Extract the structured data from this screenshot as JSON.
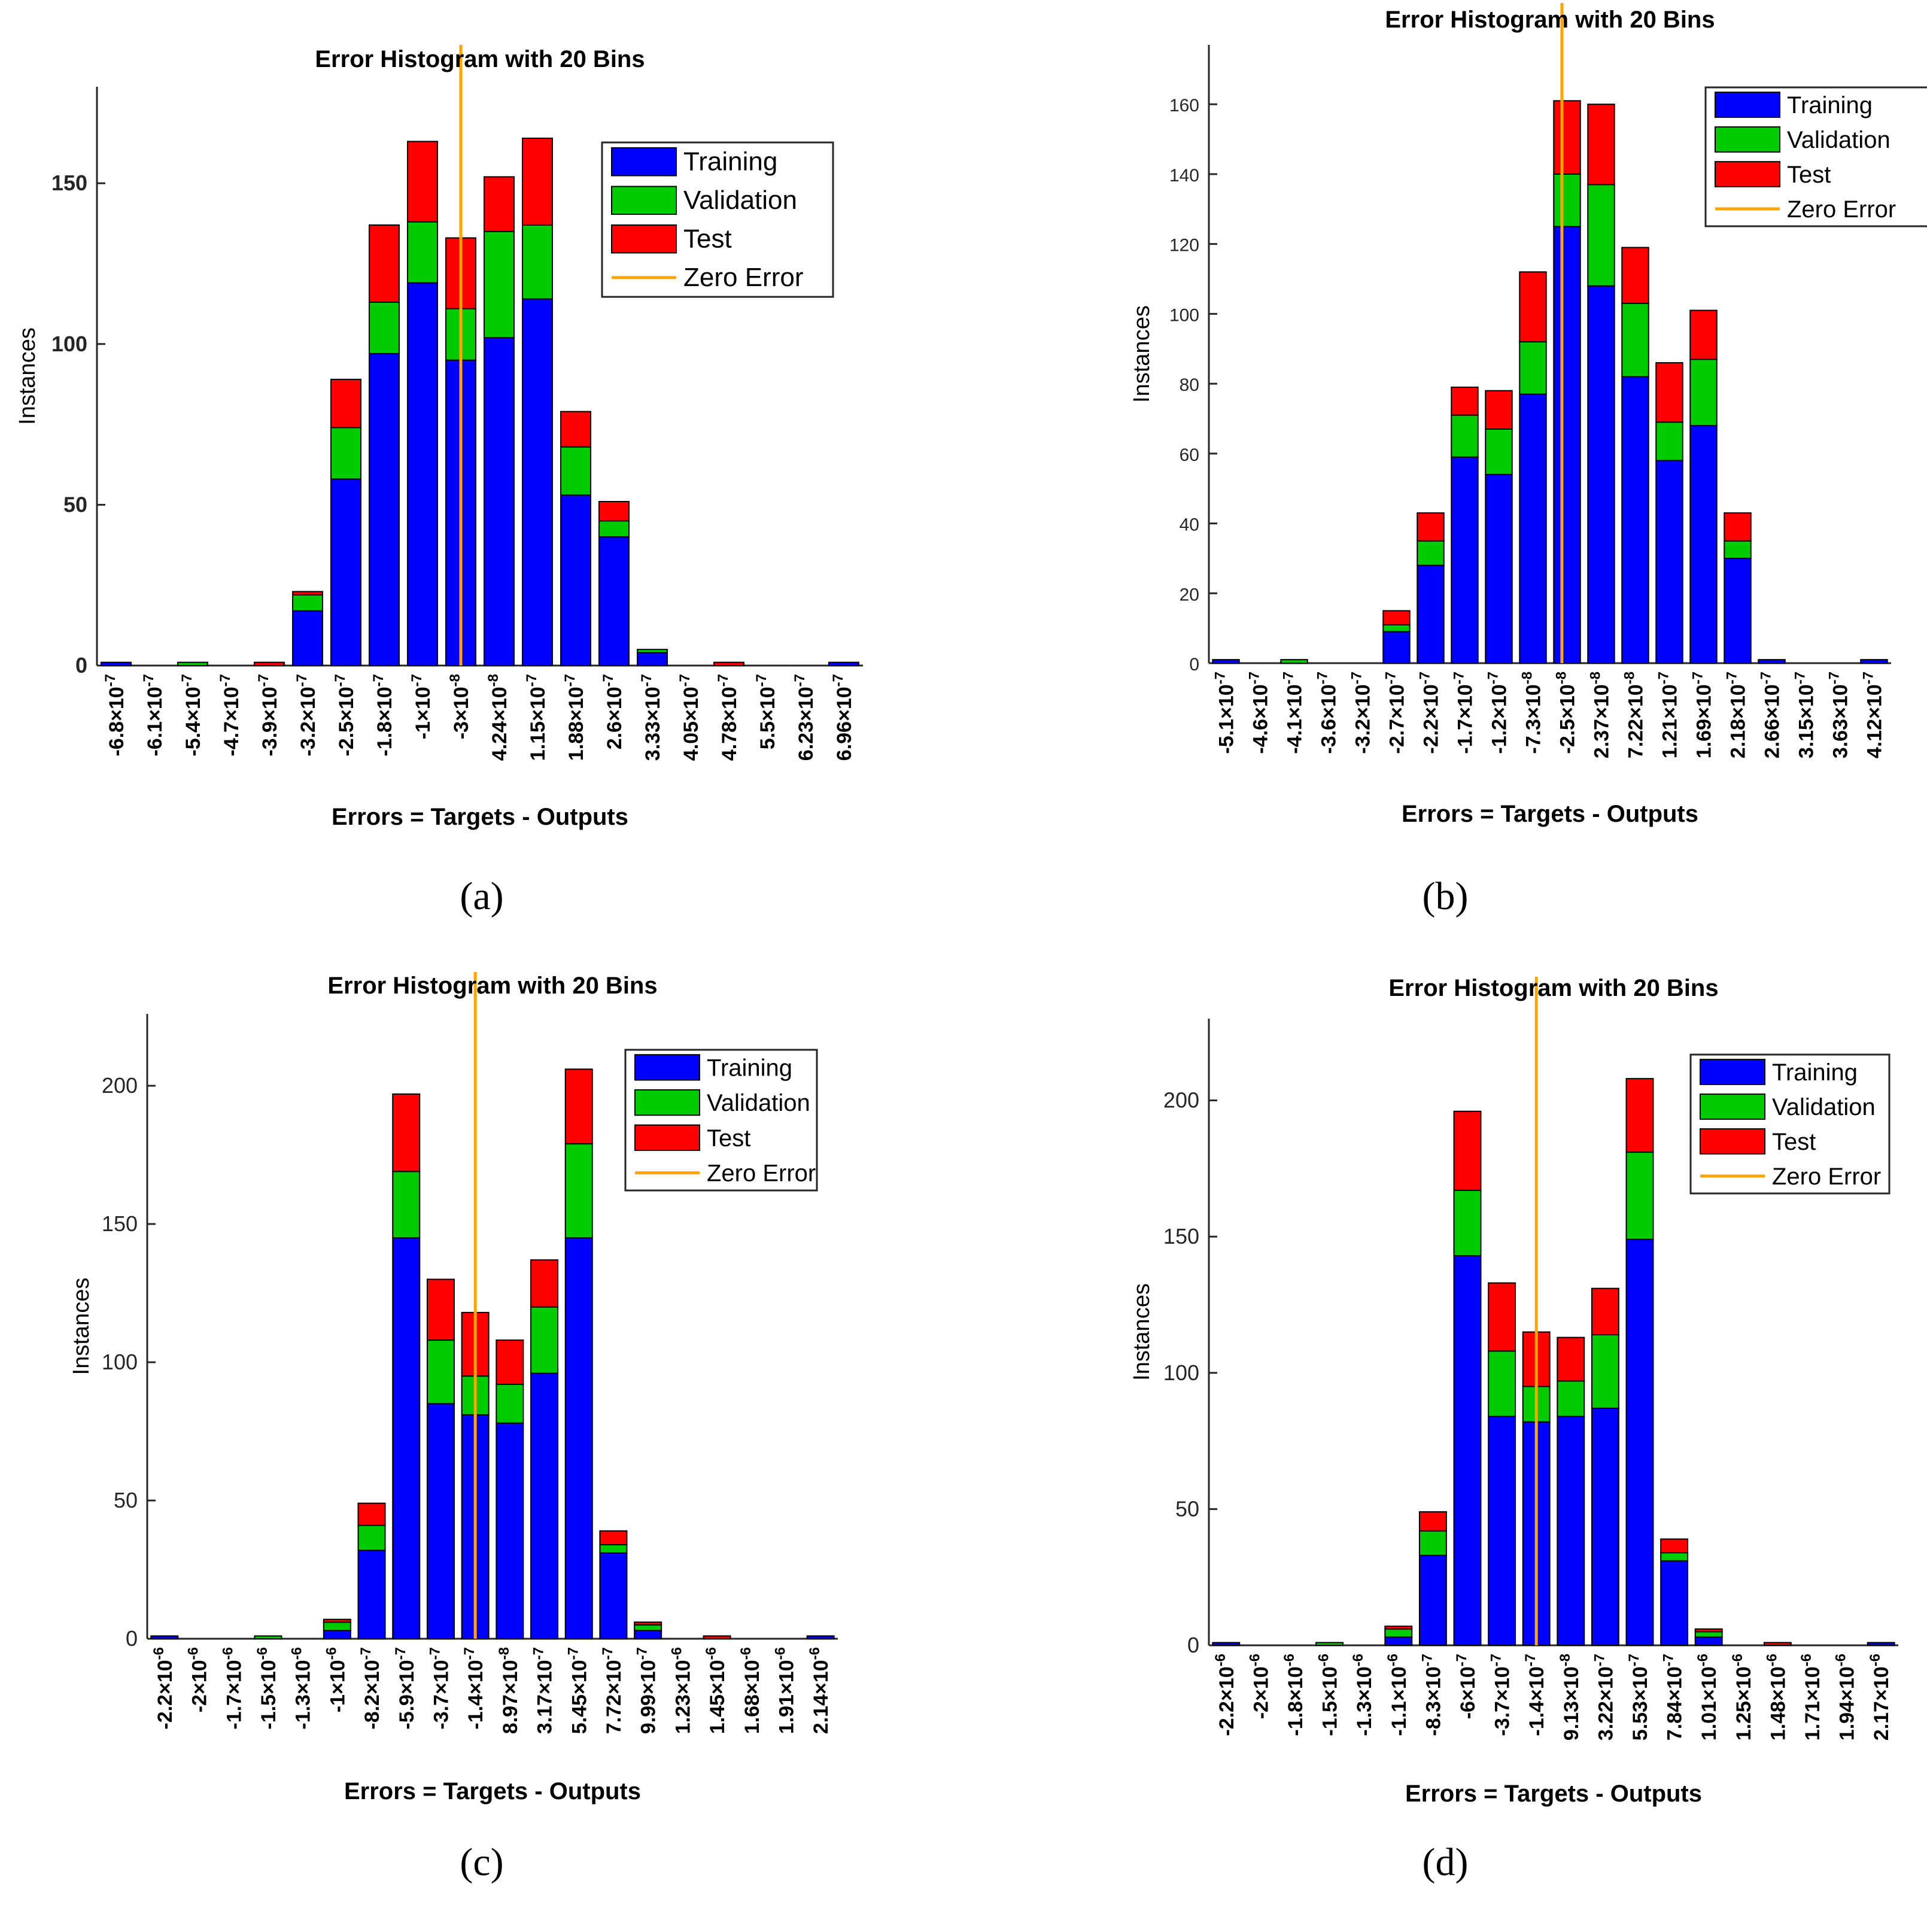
{
  "colors": {
    "training": "#0000ff",
    "validation": "#00cc00",
    "test": "#ff0000",
    "zero": "#ffa500"
  },
  "chart_data": [
    {
      "type": "bar",
      "stacked": true,
      "caption": "(a)",
      "title": "Error Histogram with 20 Bins",
      "xlabel": "Errors = Targets - Outputs",
      "ylabel": "Instances",
      "ylim": [
        0,
        180
      ],
      "yticks": [
        0,
        50,
        100,
        150
      ],
      "zero_error_bin": 9.5,
      "categories": [
        {
          "m": "-6.8",
          "e": "-7"
        },
        {
          "m": "-6.1",
          "e": "-7"
        },
        {
          "m": "-5.4",
          "e": "-7"
        },
        {
          "m": "-4.7",
          "e": "-7"
        },
        {
          "m": "-3.9",
          "e": "-7"
        },
        {
          "m": "-3.2",
          "e": "-7"
        },
        {
          "m": "-2.5",
          "e": "-7"
        },
        {
          "m": "-1.8",
          "e": "-7"
        },
        {
          "m": "-1",
          "e": "-7"
        },
        {
          "m": "-3",
          "e": "-8"
        },
        {
          "m": "4.24",
          "e": "-8"
        },
        {
          "m": "1.15",
          "e": "-7"
        },
        {
          "m": "1.88",
          "e": "-7"
        },
        {
          "m": "2.6",
          "e": "-7"
        },
        {
          "m": "3.33",
          "e": "-7"
        },
        {
          "m": "4.05",
          "e": "-7"
        },
        {
          "m": "4.78",
          "e": "-7"
        },
        {
          "m": "5.5",
          "e": "-7"
        },
        {
          "m": "6.23",
          "e": "-7"
        },
        {
          "m": "6.96",
          "e": "-7"
        }
      ],
      "series": [
        {
          "name": "Training",
          "values": [
            1,
            0,
            0,
            0,
            0,
            17,
            58,
            97,
            119,
            95,
            102,
            114,
            53,
            40,
            4,
            0,
            0,
            0,
            0,
            1
          ]
        },
        {
          "name": "Validation",
          "values": [
            0,
            0,
            1,
            0,
            0,
            5,
            16,
            16,
            19,
            16,
            33,
            23,
            15,
            5,
            1,
            0,
            0,
            0,
            0,
            0
          ]
        },
        {
          "name": "Test",
          "values": [
            0,
            0,
            0,
            0,
            1,
            1,
            15,
            24,
            25,
            22,
            17,
            27,
            11,
            6,
            0,
            0,
            1,
            0,
            0,
            0
          ]
        }
      ],
      "legend": [
        "Training",
        "Validation",
        "Test",
        "Zero Error"
      ],
      "legend_position": "top-right"
    },
    {
      "type": "bar",
      "stacked": true,
      "caption": "(b)",
      "title": "Error Histogram with 20 Bins",
      "xlabel": "Errors = Targets - Outputs",
      "ylabel": "Instances",
      "ylim": [
        0,
        177
      ],
      "yticks": [
        0,
        20,
        40,
        60,
        80,
        100,
        120,
        140,
        160
      ],
      "zero_error_bin": 10.35,
      "categories": [
        {
          "m": "-5.1",
          "e": "-7"
        },
        {
          "m": "-4.6",
          "e": "-7"
        },
        {
          "m": "-4.1",
          "e": "-7"
        },
        {
          "m": "-3.6",
          "e": "-7"
        },
        {
          "m": "-3.2",
          "e": "-7"
        },
        {
          "m": "-2.7",
          "e": "-7"
        },
        {
          "m": "-2.2",
          "e": "-7"
        },
        {
          "m": "-1.7",
          "e": "-7"
        },
        {
          "m": "-1.2",
          "e": "-7"
        },
        {
          "m": "-7.3",
          "e": "-8"
        },
        {
          "m": "-2.5",
          "e": "-8"
        },
        {
          "m": "2.37",
          "e": "-8"
        },
        {
          "m": "7.22",
          "e": "-8"
        },
        {
          "m": "1.21",
          "e": "-7"
        },
        {
          "m": "1.69",
          "e": "-7"
        },
        {
          "m": "2.18",
          "e": "-7"
        },
        {
          "m": "2.66",
          "e": "-7"
        },
        {
          "m": "3.15",
          "e": "-7"
        },
        {
          "m": "3.63",
          "e": "-7"
        },
        {
          "m": "4.12",
          "e": "-7"
        }
      ],
      "series": [
        {
          "name": "Training",
          "values": [
            1,
            0,
            0,
            0,
            0,
            9,
            28,
            59,
            54,
            77,
            125,
            108,
            82,
            58,
            68,
            30,
            1,
            0,
            0,
            1
          ]
        },
        {
          "name": "Validation",
          "values": [
            0,
            0,
            1,
            0,
            0,
            2,
            7,
            12,
            13,
            15,
            15,
            29,
            21,
            11,
            19,
            5,
            0,
            0,
            0,
            0
          ]
        },
        {
          "name": "Test",
          "values": [
            0,
            0,
            0,
            0,
            0,
            4,
            8,
            8,
            11,
            20,
            21,
            23,
            16,
            17,
            14,
            8,
            0,
            0,
            0,
            0
          ]
        }
      ],
      "legend": [
        "Training",
        "Validation",
        "Test",
        "Zero Error"
      ],
      "legend_position": "top-right"
    },
    {
      "type": "bar",
      "stacked": true,
      "caption": "(c)",
      "title": "Error Histogram with 20 Bins",
      "xlabel": "Errors = Targets - Outputs",
      "ylabel": "Instances",
      "ylim": [
        0,
        226
      ],
      "yticks": [
        0,
        50,
        100,
        150,
        200
      ],
      "zero_error_bin": 9.5,
      "categories": [
        {
          "m": "-2.2",
          "e": "-6"
        },
        {
          "m": "-2",
          "e": "-6"
        },
        {
          "m": "-1.7",
          "e": "-6"
        },
        {
          "m": "-1.5",
          "e": "-6"
        },
        {
          "m": "-1.3",
          "e": "-6"
        },
        {
          "m": "-1",
          "e": "-6"
        },
        {
          "m": "-8.2",
          "e": "-7"
        },
        {
          "m": "-5.9",
          "e": "-7"
        },
        {
          "m": "-3.7",
          "e": "-7"
        },
        {
          "m": "-1.4",
          "e": "-7"
        },
        {
          "m": "8.97",
          "e": "-8"
        },
        {
          "m": "3.17",
          "e": "-7"
        },
        {
          "m": "5.45",
          "e": "-7"
        },
        {
          "m": "7.72",
          "e": "-7"
        },
        {
          "m": "9.99",
          "e": "-7"
        },
        {
          "m": "1.23",
          "e": "-6"
        },
        {
          "m": "1.45",
          "e": "-6"
        },
        {
          "m": "1.68",
          "e": "-6"
        },
        {
          "m": "1.91",
          "e": "-6"
        },
        {
          "m": "2.14",
          "e": "-6"
        }
      ],
      "series": [
        {
          "name": "Training",
          "values": [
            1,
            0,
            0,
            0,
            0,
            3,
            32,
            145,
            85,
            81,
            78,
            96,
            145,
            31,
            3,
            0,
            0,
            0,
            0,
            1
          ]
        },
        {
          "name": "Validation",
          "values": [
            0,
            0,
            0,
            1,
            0,
            3,
            9,
            24,
            23,
            14,
            14,
            24,
            34,
            3,
            2,
            0,
            0,
            0,
            0,
            0
          ]
        },
        {
          "name": "Test",
          "values": [
            0,
            0,
            0,
            0,
            0,
            1,
            8,
            28,
            22,
            23,
            16,
            17,
            27,
            5,
            1,
            0,
            1,
            0,
            0,
            0
          ]
        }
      ],
      "legend": [
        "Training",
        "Validation",
        "Test",
        "Zero Error"
      ],
      "legend_position": "top-right"
    },
    {
      "type": "bar",
      "stacked": true,
      "caption": "(d)",
      "title": "Error Histogram with 20 Bins",
      "xlabel": "Errors = Targets - Outputs",
      "ylabel": "Instances",
      "ylim": [
        0,
        230
      ],
      "yticks": [
        0,
        50,
        100,
        150,
        200
      ],
      "zero_error_bin": 9.5,
      "categories": [
        {
          "m": "-2.2",
          "e": "-6"
        },
        {
          "m": "-2",
          "e": "-6"
        },
        {
          "m": "-1.8",
          "e": "-6"
        },
        {
          "m": "-1.5",
          "e": "-6"
        },
        {
          "m": "-1.3",
          "e": "-6"
        },
        {
          "m": "-1.1",
          "e": "-6"
        },
        {
          "m": "-8.3",
          "e": "-7"
        },
        {
          "m": "-6",
          "e": "-7"
        },
        {
          "m": "-3.7",
          "e": "-7"
        },
        {
          "m": "-1.4",
          "e": "-7"
        },
        {
          "m": "9.13",
          "e": "-8"
        },
        {
          "m": "3.22",
          "e": "-7"
        },
        {
          "m": "5.53",
          "e": "-7"
        },
        {
          "m": "7.84",
          "e": "-7"
        },
        {
          "m": "1.01",
          "e": "-6"
        },
        {
          "m": "1.25",
          "e": "-6"
        },
        {
          "m": "1.48",
          "e": "-6"
        },
        {
          "m": "1.71",
          "e": "-6"
        },
        {
          "m": "1.94",
          "e": "-6"
        },
        {
          "m": "2.17",
          "e": "-6"
        }
      ],
      "series": [
        {
          "name": "Training",
          "values": [
            1,
            0,
            0,
            0,
            0,
            3,
            33,
            143,
            84,
            82,
            84,
            87,
            149,
            31,
            3,
            0,
            0,
            0,
            0,
            1
          ]
        },
        {
          "name": "Validation",
          "values": [
            0,
            0,
            0,
            1,
            0,
            3,
            9,
            24,
            24,
            13,
            13,
            27,
            32,
            3,
            2,
            0,
            0,
            0,
            0,
            0
          ]
        },
        {
          "name": "Test",
          "values": [
            0,
            0,
            0,
            0,
            0,
            1,
            7,
            29,
            25,
            20,
            16,
            17,
            27,
            5,
            1,
            0,
            1,
            0,
            0,
            0
          ]
        }
      ],
      "legend": [
        "Training",
        "Validation",
        "Test",
        "Zero Error"
      ],
      "legend_position": "top-right"
    }
  ]
}
